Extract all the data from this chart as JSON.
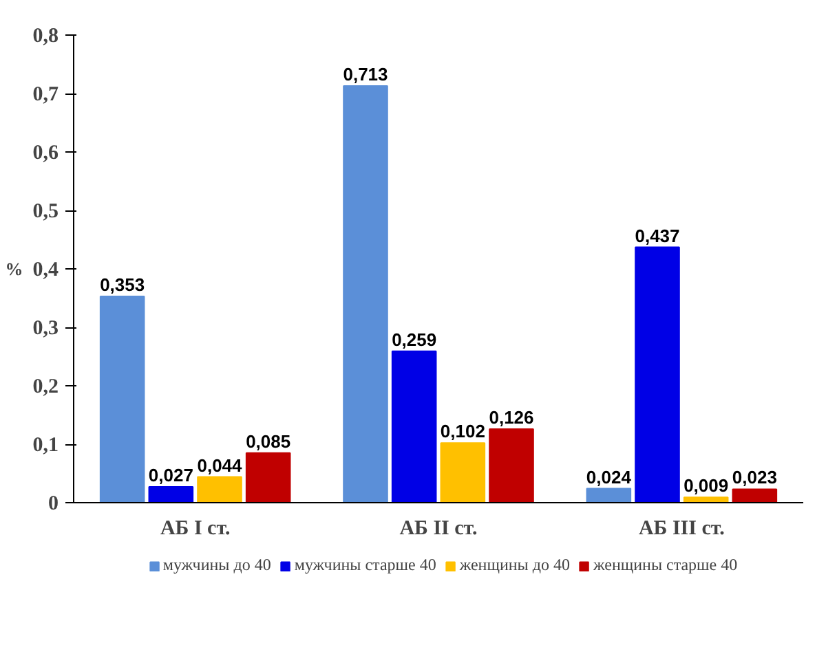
{
  "chart_data": {
    "type": "bar",
    "ylabel": "%",
    "categories": [
      "АБ I ст.",
      "АБ II ст.",
      "АБ III ст."
    ],
    "ylim": [
      0,
      0.8
    ],
    "yticks": [
      0,
      {
        "value": 0.1,
        "label": "0,1"
      },
      {
        "value": 0.2,
        "label": "0,2"
      },
      {
        "value": 0.3,
        "label": "0,3"
      },
      {
        "value": 0.4,
        "label": "0,4"
      },
      {
        "value": 0.5,
        "label": "0,5"
      },
      {
        "value": 0.6,
        "label": "0,6"
      },
      {
        "value": 0.7,
        "label": "0,7"
      },
      {
        "value": 0.8,
        "label": "0,8"
      }
    ],
    "grid": false,
    "legend": "bottom",
    "series": [
      {
        "name": "мужчины до 40",
        "color": "#5b8fd8",
        "values": [
          0.353,
          0.713,
          0.024
        ],
        "value_labels": [
          "0,353",
          "0,713",
          "0,024"
        ]
      },
      {
        "name": "мужчины старше 40",
        "color": "#0000e6",
        "values": [
          0.027,
          0.259,
          0.437
        ],
        "value_labels": [
          "0,027",
          "0,259",
          "0,437"
        ]
      },
      {
        "name": "женщины до 40",
        "color": "#ffc000",
        "values": [
          0.044,
          0.102,
          0.009
        ],
        "value_labels": [
          "0,044",
          "0,102",
          "0,009"
        ]
      },
      {
        "name": "женщины старше 40",
        "color": "#c00000",
        "values": [
          0.085,
          0.126,
          0.023
        ],
        "value_labels": [
          "0,085",
          "0,126",
          "0,023"
        ]
      }
    ]
  }
}
